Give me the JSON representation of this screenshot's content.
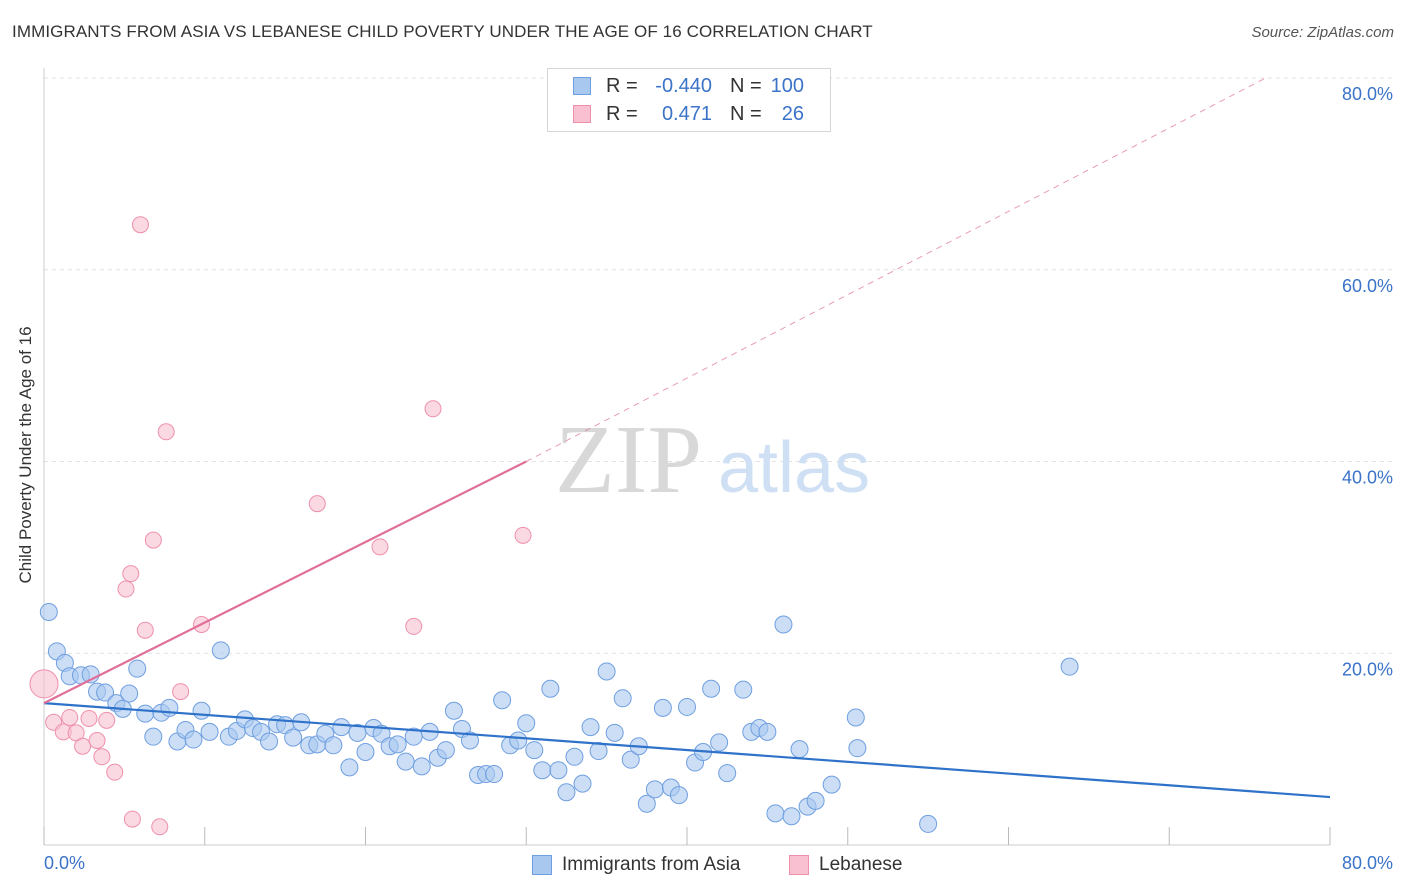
{
  "header": {
    "title": "IMMIGRANTS FROM ASIA VS LEBANESE CHILD POVERTY UNDER THE AGE OF 16 CORRELATION CHART",
    "source": "Source: ZipAtlas.com"
  },
  "watermark": {
    "zip": "ZIP",
    "atlas": "atlas"
  },
  "legend_top": [
    {
      "swatch_color": "#a9c8f0",
      "r_label": "R =",
      "r_value": "-0.440",
      "n_label": "N =",
      "n_value": "100"
    },
    {
      "swatch_color": "#f6b6c8",
      "r_label": "R =",
      "r_value": "0.471",
      "n_label": "N =",
      "n_value": "26"
    }
  ],
  "legend_bottom": [
    {
      "label": "Immigrants from Asia",
      "color": "#a9c8f0"
    },
    {
      "label": "Lebanese",
      "color": "#f6b6c8"
    }
  ],
  "chart_data": {
    "type": "scatter",
    "title": "IMMIGRANTS FROM ASIA VS LEBANESE CHILD POVERTY UNDER THE AGE OF 16 CORRELATION CHART",
    "xlabel": "",
    "ylabel": "Child Poverty Under the Age of 16",
    "xlim": [
      0,
      80
    ],
    "ylim": [
      0,
      80
    ],
    "x_tick_labels": [
      {
        "value": 0,
        "label": "0.0%"
      },
      {
        "value": 80,
        "label": "80.0%"
      }
    ],
    "y_tick_labels": [
      {
        "value": 20,
        "label": "20.0%"
      },
      {
        "value": 40,
        "label": "40.0%"
      },
      {
        "value": 60,
        "label": "60.0%"
      },
      {
        "value": 80,
        "label": "80.0%"
      }
    ],
    "colors": {
      "asia_fill": "#a9c8f0",
      "asia_stroke": "#6f9fe0",
      "asia_line": "#2f72c9",
      "leb_fill": "#f8c0d0",
      "leb_stroke": "#ee90ab",
      "leb_line": "#e0709a",
      "grid": "#e2e2e2",
      "tick_text": "#3b73c8"
    },
    "series": [
      {
        "name": "Immigrants from Asia",
        "trend": {
          "x0": 0,
          "y0": 14.8,
          "x1": 80,
          "y1": 5.0
        },
        "points": [
          [
            0.3,
            24.3
          ],
          [
            0.8,
            20.2
          ],
          [
            1.3,
            19.0
          ],
          [
            1.6,
            17.6
          ],
          [
            2.3,
            17.7
          ],
          [
            2.9,
            17.8
          ],
          [
            3.3,
            16.0
          ],
          [
            3.8,
            15.9
          ],
          [
            4.5,
            14.8
          ],
          [
            4.9,
            14.2
          ],
          [
            5.3,
            15.8
          ],
          [
            5.8,
            18.4
          ],
          [
            6.3,
            13.7
          ],
          [
            6.8,
            11.3
          ],
          [
            7.3,
            13.8
          ],
          [
            7.8,
            14.3
          ],
          [
            8.3,
            10.8
          ],
          [
            8.8,
            12.0
          ],
          [
            9.3,
            11.0
          ],
          [
            9.8,
            14.0
          ],
          [
            10.3,
            11.8
          ],
          [
            11.0,
            20.3
          ],
          [
            11.5,
            11.3
          ],
          [
            12.0,
            11.9
          ],
          [
            12.5,
            13.1
          ],
          [
            13.0,
            12.2
          ],
          [
            13.5,
            11.8
          ],
          [
            14.0,
            10.8
          ],
          [
            14.5,
            12.6
          ],
          [
            15.0,
            12.5
          ],
          [
            15.5,
            11.2
          ],
          [
            16.0,
            12.8
          ],
          [
            16.5,
            10.4
          ],
          [
            17.0,
            10.5
          ],
          [
            17.5,
            11.6
          ],
          [
            18.0,
            10.4
          ],
          [
            18.5,
            12.3
          ],
          [
            19.0,
            8.1
          ],
          [
            19.5,
            11.7
          ],
          [
            20.0,
            9.7
          ],
          [
            20.5,
            12.2
          ],
          [
            21.0,
            11.6
          ],
          [
            21.5,
            10.3
          ],
          [
            22.0,
            10.5
          ],
          [
            22.5,
            8.7
          ],
          [
            23.0,
            11.3
          ],
          [
            23.5,
            8.2
          ],
          [
            24.0,
            11.8
          ],
          [
            24.5,
            9.1
          ],
          [
            25.0,
            9.9
          ],
          [
            25.5,
            14.0
          ],
          [
            26.0,
            12.1
          ],
          [
            26.5,
            10.9
          ],
          [
            27.0,
            7.3
          ],
          [
            27.5,
            7.4
          ],
          [
            28.0,
            7.4
          ],
          [
            28.5,
            15.1
          ],
          [
            29.0,
            10.4
          ],
          [
            29.5,
            10.9
          ],
          [
            30.0,
            12.7
          ],
          [
            30.5,
            9.9
          ],
          [
            31.0,
            7.8
          ],
          [
            31.5,
            16.3
          ],
          [
            32.0,
            7.8
          ],
          [
            32.5,
            5.5
          ],
          [
            33.0,
            9.2
          ],
          [
            33.5,
            6.4
          ],
          [
            34.0,
            12.3
          ],
          [
            34.5,
            9.8
          ],
          [
            35.0,
            18.1
          ],
          [
            35.5,
            11.7
          ],
          [
            36.0,
            15.3
          ],
          [
            36.5,
            8.9
          ],
          [
            37.0,
            10.3
          ],
          [
            37.5,
            4.3
          ],
          [
            38.0,
            5.8
          ],
          [
            38.5,
            14.3
          ],
          [
            39.0,
            6.0
          ],
          [
            39.5,
            5.2
          ],
          [
            40.0,
            14.4
          ],
          [
            40.5,
            8.6
          ],
          [
            41.0,
            9.7
          ],
          [
            41.5,
            16.3
          ],
          [
            42.0,
            10.7
          ],
          [
            42.5,
            7.5
          ],
          [
            43.5,
            16.2
          ],
          [
            44.0,
            11.8
          ],
          [
            44.5,
            12.2
          ],
          [
            45.0,
            11.8
          ],
          [
            45.5,
            3.3
          ],
          [
            46.0,
            23.0
          ],
          [
            46.5,
            3.0
          ],
          [
            47.0,
            10.0
          ],
          [
            47.5,
            4.0
          ],
          [
            48.0,
            4.6
          ],
          [
            49.0,
            6.3
          ],
          [
            50.5,
            13.3
          ],
          [
            50.6,
            10.1
          ],
          [
            55.0,
            2.2
          ],
          [
            63.8,
            18.6
          ]
        ]
      },
      {
        "name": "Lebanese",
        "trend": {
          "x0": 0,
          "y0": 14.8,
          "x1": 30.0,
          "y1": 40.0,
          "dash_x1": 76.0,
          "dash_y1": 80.0
        },
        "points": [
          [
            0.0,
            16.8
          ],
          [
            0.6,
            12.8
          ],
          [
            1.2,
            11.8
          ],
          [
            1.6,
            13.3
          ],
          [
            2.0,
            11.7
          ],
          [
            2.4,
            10.3
          ],
          [
            2.8,
            13.2
          ],
          [
            3.3,
            10.9
          ],
          [
            3.6,
            9.2
          ],
          [
            3.9,
            13.0
          ],
          [
            4.4,
            7.6
          ],
          [
            5.1,
            26.7
          ],
          [
            5.4,
            28.3
          ],
          [
            6.0,
            64.7
          ],
          [
            6.3,
            22.4
          ],
          [
            6.8,
            31.8
          ],
          [
            7.6,
            43.1
          ],
          [
            8.5,
            16.0
          ],
          [
            9.8,
            23.0
          ],
          [
            17.0,
            35.6
          ],
          [
            20.9,
            31.1
          ],
          [
            23.0,
            22.8
          ],
          [
            24.2,
            45.5
          ],
          [
            29.8,
            32.3
          ],
          [
            5.5,
            2.7
          ],
          [
            7.2,
            1.9
          ]
        ]
      }
    ]
  }
}
